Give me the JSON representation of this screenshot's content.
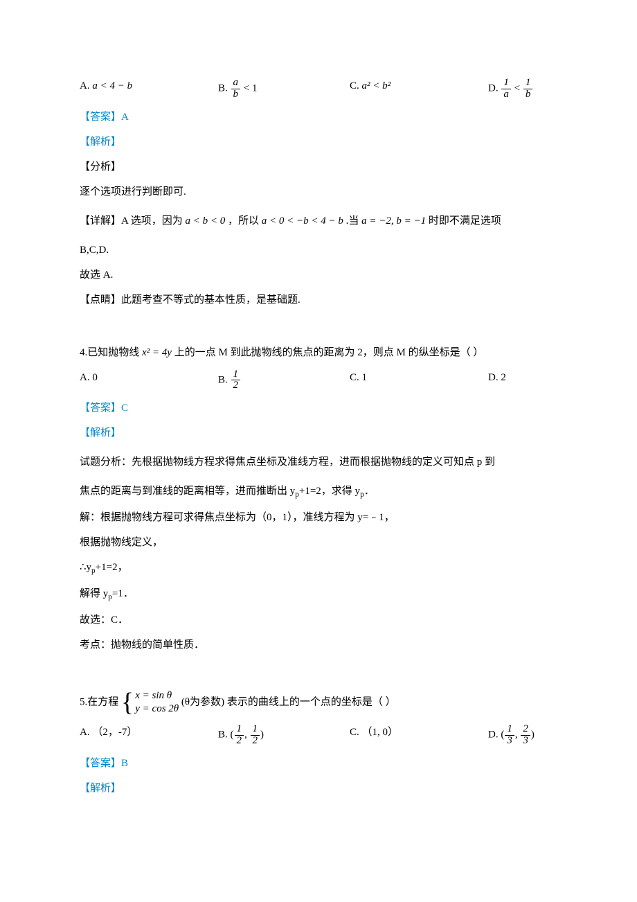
{
  "colors": {
    "text": "#000000",
    "accent": "#0086ce",
    "background": "#ffffff"
  },
  "typography": {
    "font_family": "SimSun",
    "base_size_pt": 11,
    "line_height": 1.6
  },
  "q3": {
    "opt_a_prefix": "A. ",
    "opt_a_math": "a < 4 − b",
    "opt_b_prefix": "B. ",
    "opt_b_frac_num": "a",
    "opt_b_frac_den": "b",
    "opt_b_tail": " < 1",
    "opt_c_prefix": "C. ",
    "opt_c_math": "a² < b²",
    "opt_d_prefix": "D. ",
    "opt_d_frac1_num": "1",
    "opt_d_frac1_den": "a",
    "opt_d_mid": " < ",
    "opt_d_frac2_num": "1",
    "opt_d_frac2_den": "b",
    "answer": "【答案】A",
    "parse": "【解析】",
    "analysis_hd": "【分析】",
    "analysis_body": "逐个选项进行判断即可.",
    "detail_line1_a": "【详解】A 选项，因为",
    "detail_line1_b": "a < b < 0",
    "detail_line1_c": "，所以",
    "detail_line1_d": "a < 0 < −b < 4 − b",
    "detail_line1_e": ".当",
    "detail_line1_f": "a = −2, b = −1",
    "detail_line1_g": "时即不满足选项",
    "detail_line2": "B,C,D.",
    "conclusion": "故选 A.",
    "dianjing": "【点睛】此题考查不等式的基本性质，是基础题."
  },
  "q4": {
    "stem_a": "4.已知抛物线",
    "stem_b": "x² = 4y",
    "stem_c": "上的一点 M 到此抛物线的焦点的距离为 2，则点 M 的纵坐标是（    ）",
    "opt_a": "A. 0",
    "opt_b_prefix": "B. ",
    "opt_b_num": "1",
    "opt_b_den": "2",
    "opt_c": "C. 1",
    "opt_d": "D. 2",
    "answer": "【答案】C",
    "parse": "【解析】",
    "line1": "试题分析：先根据抛物线方程求得焦点坐标及准线方程，进而根据抛物线的定义可知点 p 到",
    "line2a": "焦点的距离与到准线的距离相等，进而推断出 y",
    "line2b": "+1=2，求得 y",
    "line2c": "．",
    "line3": "解：根据抛物线方程可求得焦点坐标为（0，1），准线方程为 y=﹣1，",
    "line4": "根据抛物线定义，",
    "line5a": "∴y",
    "line5b": "+1=2，",
    "line6a": "解得 y",
    "line6b": "=1．",
    "line7": "故选：C．",
    "line8": "考点：抛物线的简单性质．",
    "sub_p": "p"
  },
  "q5": {
    "stem_a": "5.在方程",
    "case1": "x = sin θ",
    "case2": "y = cos 2θ",
    "stem_b": "(θ为参数)",
    "stem_c": "表示的曲线上的一个点的坐标是（    ）",
    "opt_a": "A. （2，-7）",
    "opt_b_prefix": "B. (",
    "opt_b_n1": "1",
    "opt_b_d1": "2",
    "opt_b_comma": ", ",
    "opt_b_n2": "1",
    "opt_b_d2": "2",
    "opt_b_close": ")",
    "opt_c": "C. （1, 0）",
    "opt_d_prefix": "D. (",
    "opt_d_n1": "1",
    "opt_d_d1": "3",
    "opt_d_comma": ", ",
    "opt_d_n2": "2",
    "opt_d_d2": "3",
    "opt_d_close": ")",
    "answer": "【答案】B",
    "parse": "【解析】"
  }
}
